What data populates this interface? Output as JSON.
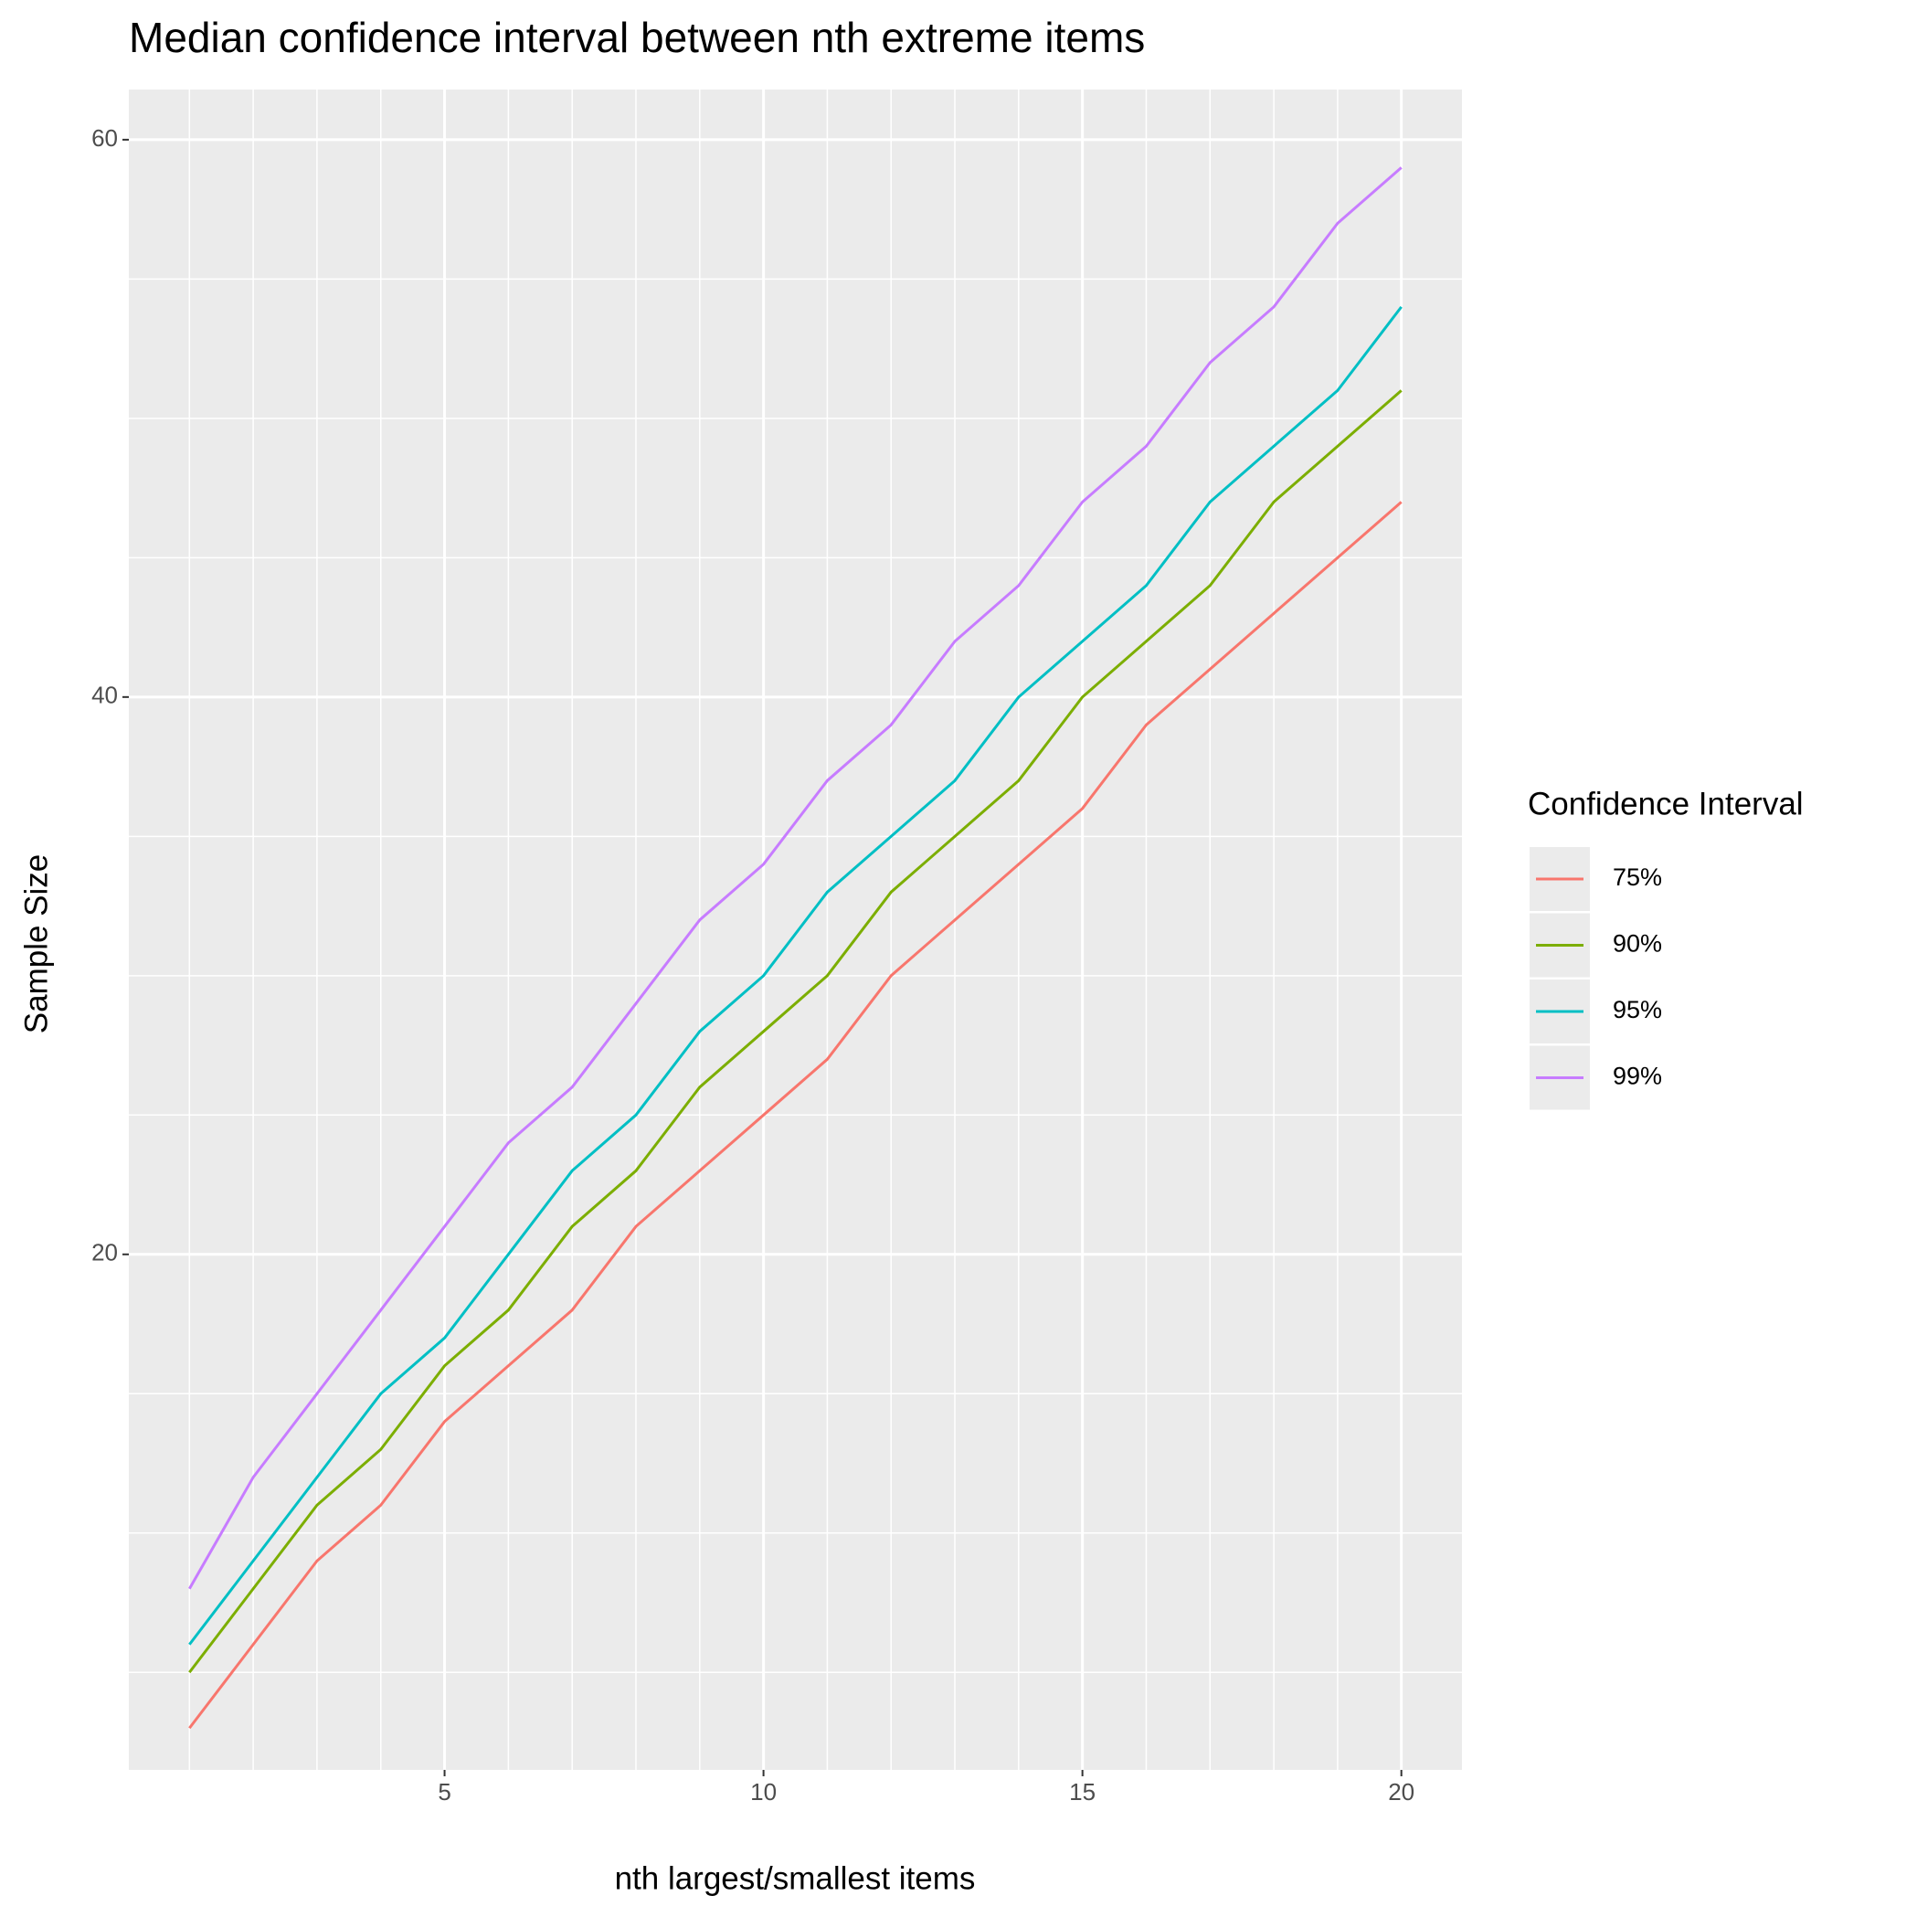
{
  "chart_data": {
    "type": "line",
    "title": "Median confidence interval between nth extreme items",
    "x_label": "nth largest/smallest items",
    "y_label": "Sample Size",
    "legend_title": "Confidence Interval",
    "legend_position": "right",
    "grid": true,
    "x": [
      1,
      2,
      3,
      4,
      5,
      6,
      7,
      8,
      9,
      10,
      11,
      12,
      13,
      14,
      15,
      16,
      17,
      18,
      19,
      20
    ],
    "series": [
      {
        "name": "75%",
        "color": "#F8766D",
        "values": [
          3,
          6,
          9,
          11,
          14,
          16,
          18,
          21,
          23,
          25,
          27,
          30,
          32,
          34,
          36,
          39,
          41,
          43,
          45,
          47
        ]
      },
      {
        "name": "90%",
        "color": "#7CAE00",
        "values": [
          5,
          8,
          11,
          13,
          16,
          18,
          21,
          23,
          26,
          28,
          30,
          33,
          35,
          37,
          40,
          42,
          44,
          47,
          49,
          51
        ]
      },
      {
        "name": "95%",
        "color": "#00BFC4",
        "values": [
          6,
          9,
          12,
          15,
          17,
          20,
          23,
          25,
          28,
          30,
          33,
          35,
          37,
          40,
          42,
          44,
          47,
          49,
          51,
          54
        ]
      },
      {
        "name": "99%",
        "color": "#C77CFF",
        "values": [
          8,
          12,
          15,
          18,
          21,
          24,
          26,
          29,
          32,
          34,
          37,
          39,
          42,
          44,
          47,
          49,
          52,
          54,
          57,
          59
        ]
      }
    ],
    "xlim": [
      0.05,
      20.95
    ],
    "xticks": [
      5,
      10,
      15,
      20
    ],
    "minor_xticks": [
      1,
      2,
      3,
      4,
      6,
      7,
      8,
      9,
      11,
      12,
      13,
      14,
      16,
      17,
      18,
      19
    ],
    "ylim": [
      1.5,
      61.8
    ],
    "yticks": [
      20,
      40,
      60
    ],
    "minor_yticks": [
      5,
      10,
      15,
      25,
      30,
      35,
      45,
      50,
      55
    ]
  }
}
